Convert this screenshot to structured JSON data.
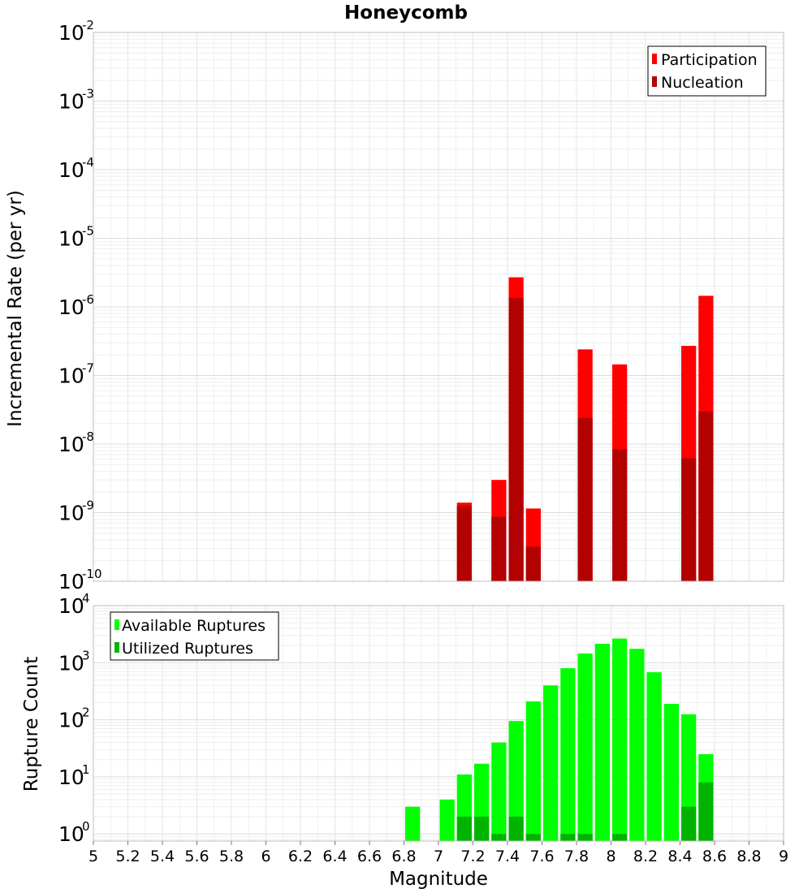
{
  "chart_data": [
    {
      "type": "bar",
      "title": "Honeycomb",
      "ylabel": "Incremental Rate (per yr)",
      "xlabel": "",
      "yscale": "log",
      "ylim": [
        1e-10,
        0.01
      ],
      "xlim": [
        5,
        9
      ],
      "bin_width": 0.1,
      "legend_placement": "top-right",
      "grid": true,
      "series": [
        {
          "name": "Participation",
          "color": "#ff0000",
          "x": [
            7.15,
            7.35,
            7.45,
            7.55,
            7.85,
            8.05,
            8.45,
            8.55
          ],
          "values": [
            1.4e-09,
            3e-09,
            2.7e-06,
            1.15e-09,
            2.4e-07,
            1.45e-07,
            2.7e-07,
            1.45e-06
          ]
        },
        {
          "name": "Nucleation",
          "color": "#b30000",
          "x": [
            7.15,
            7.35,
            7.45,
            7.55,
            7.85,
            8.05,
            8.45,
            8.55
          ],
          "values": [
            1.25e-09,
            8.7e-10,
            1.35e-06,
            3.2e-10,
            2.4e-08,
            8.4e-09,
            6.2e-09,
            3e-08
          ]
        }
      ]
    },
    {
      "type": "bar",
      "title": "",
      "ylabel": "Rupture Count",
      "xlabel": "Magnitude",
      "yscale": "log",
      "ylim": [
        0.75,
        10000
      ],
      "xlim": [
        5,
        9
      ],
      "bin_width": 0.1,
      "legend_placement": "top-left",
      "grid": true,
      "xticks": [
        "5",
        "5.2",
        "5.4",
        "5.6",
        "5.8",
        "6",
        "6.2",
        "6.4",
        "6.6",
        "6.8",
        "7",
        "7.2",
        "7.4",
        "7.6",
        "7.8",
        "8",
        "8.2",
        "8.4",
        "8.6",
        "8.8",
        "9"
      ],
      "series": [
        {
          "name": "Available Ruptures",
          "color": "#00ff00",
          "x": [
            6.85,
            7.05,
            7.15,
            7.25,
            7.35,
            7.45,
            7.55,
            7.65,
            7.75,
            7.85,
            7.95,
            8.05,
            8.15,
            8.25,
            8.35,
            8.45,
            8.55
          ],
          "values": [
            3,
            4,
            11,
            17,
            40,
            95,
            210,
            400,
            800,
            1450,
            2150,
            2650,
            1750,
            680,
            190,
            125,
            25
          ]
        },
        {
          "name": "Utilized Ruptures",
          "color": "#00b300",
          "x": [
            7.15,
            7.25,
            7.35,
            7.45,
            7.55,
            7.75,
            7.85,
            8.05,
            8.45,
            8.55
          ],
          "values": [
            2,
            2,
            1,
            2,
            1,
            1,
            1,
            1,
            3,
            8
          ]
        }
      ]
    }
  ]
}
